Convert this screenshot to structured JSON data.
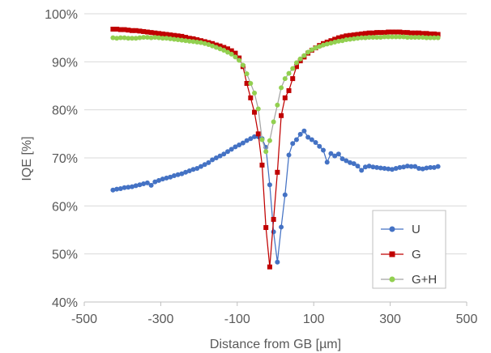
{
  "chart_data": {
    "type": "line",
    "xlabel": "Distance from GB [µm]",
    "ylabel": "IQE [%]",
    "xlim": [
      -500,
      500
    ],
    "ylim": [
      40,
      100
    ],
    "x_ticks": [
      -500,
      -300,
      -100,
      100,
      300,
      500
    ],
    "x_tick_labels": [
      "-500",
      "-300",
      "-100",
      "100",
      "300",
      "500"
    ],
    "y_ticks": [
      40,
      50,
      60,
      70,
      80,
      90,
      100
    ],
    "y_tick_labels": [
      "40%",
      "50%",
      "60%",
      "70%",
      "80%",
      "90%",
      "100%"
    ],
    "grid": "horizontal",
    "legend_position": "bottom-right",
    "series": [
      {
        "name": "U",
        "color": "#4472c4",
        "marker": "circle",
        "x": [
          -425,
          -415,
          -405,
          -395,
          -385,
          -375,
          -365,
          -355,
          -345,
          -335,
          -325,
          -315,
          -305,
          -295,
          -285,
          -275,
          -265,
          -255,
          -245,
          -235,
          -225,
          -215,
          -205,
          -195,
          -185,
          -175,
          -165,
          -155,
          -145,
          -135,
          -125,
          -115,
          -105,
          -95,
          -85,
          -75,
          -65,
          -55,
          -45,
          -35,
          -25,
          -15,
          -5,
          5,
          15,
          25,
          35,
          45,
          55,
          65,
          75,
          85,
          95,
          105,
          115,
          125,
          135,
          145,
          155,
          165,
          175,
          185,
          195,
          205,
          215,
          225,
          235,
          245,
          255,
          265,
          275,
          285,
          295,
          305,
          315,
          325,
          335,
          345,
          355,
          365,
          375,
          385,
          395,
          405,
          415,
          425
        ],
        "values": [
          63.3,
          63.5,
          63.6,
          63.8,
          63.9,
          64.0,
          64.2,
          64.4,
          64.6,
          64.8,
          64.3,
          65.0,
          65.3,
          65.6,
          65.8,
          66.0,
          66.3,
          66.5,
          66.7,
          67.0,
          67.3,
          67.6,
          67.8,
          68.2,
          68.6,
          69.0,
          69.6,
          70.0,
          70.4,
          70.8,
          71.3,
          71.8,
          72.3,
          72.7,
          73.1,
          73.6,
          74.0,
          74.4,
          74.4,
          74.0,
          72.2,
          64.4,
          54.6,
          48.3,
          55.6,
          62.3,
          70.6,
          73.0,
          73.8,
          74.9,
          75.6,
          74.3,
          73.8,
          73.2,
          72.4,
          71.6,
          69.1,
          70.9,
          70.4,
          70.8,
          69.8,
          69.4,
          69.0,
          68.8,
          68.3,
          67.4,
          68.1,
          68.3,
          68.1,
          68.0,
          67.9,
          67.8,
          67.7,
          67.6,
          67.8,
          68.0,
          68.1,
          68.3,
          68.2,
          68.2,
          67.8,
          67.7,
          67.9,
          68.0,
          68.0,
          68.2
        ]
      },
      {
        "name": "G",
        "color": "#c00000",
        "marker": "square",
        "x": [
          -425,
          -415,
          -405,
          -395,
          -385,
          -375,
          -365,
          -355,
          -345,
          -335,
          -325,
          -315,
          -305,
          -295,
          -285,
          -275,
          -265,
          -255,
          -245,
          -235,
          -225,
          -215,
          -205,
          -195,
          -185,
          -175,
          -165,
          -155,
          -145,
          -135,
          -125,
          -115,
          -105,
          -95,
          -85,
          -75,
          -65,
          -55,
          -45,
          -35,
          -25,
          -15,
          -5,
          5,
          15,
          25,
          35,
          45,
          55,
          65,
          75,
          85,
          95,
          105,
          115,
          125,
          135,
          145,
          155,
          165,
          175,
          185,
          195,
          205,
          215,
          225,
          235,
          245,
          255,
          265,
          275,
          285,
          295,
          305,
          315,
          325,
          335,
          345,
          355,
          365,
          375,
          385,
          395,
          405,
          415,
          425
        ],
        "values": [
          96.8,
          96.8,
          96.7,
          96.7,
          96.6,
          96.5,
          96.5,
          96.4,
          96.3,
          96.2,
          96.1,
          96.0,
          95.9,
          95.8,
          95.7,
          95.6,
          95.5,
          95.4,
          95.3,
          95.1,
          94.9,
          94.8,
          94.6,
          94.4,
          94.2,
          94.0,
          93.8,
          93.5,
          93.3,
          93.0,
          92.7,
          92.3,
          91.8,
          90.8,
          89.0,
          85.5,
          82.5,
          79.5,
          75.0,
          68.5,
          55.5,
          47.3,
          57.2,
          67.0,
          78.8,
          82.5,
          84.0,
          86.5,
          89.0,
          90.2,
          91.0,
          91.8,
          92.4,
          92.9,
          93.4,
          93.8,
          94.1,
          94.4,
          94.7,
          95.0,
          95.2,
          95.4,
          95.5,
          95.6,
          95.7,
          95.8,
          95.9,
          96.0,
          96.0,
          96.1,
          96.1,
          96.1,
          96.2,
          96.2,
          96.2,
          96.2,
          96.1,
          96.1,
          96.0,
          96.0,
          96.0,
          95.9,
          95.9,
          95.8,
          95.8,
          95.7
        ]
      },
      {
        "name": "G+H",
        "color": "#92d050",
        "marker": "circle",
        "x": [
          -425,
          -415,
          -405,
          -395,
          -385,
          -375,
          -365,
          -355,
          -345,
          -335,
          -325,
          -315,
          -305,
          -295,
          -285,
          -275,
          -265,
          -255,
          -245,
          -235,
          -225,
          -215,
          -205,
          -195,
          -185,
          -175,
          -165,
          -155,
          -145,
          -135,
          -125,
          -115,
          -105,
          -95,
          -85,
          -75,
          -65,
          -55,
          -45,
          -35,
          -25,
          -15,
          -5,
          5,
          15,
          25,
          35,
          45,
          55,
          65,
          75,
          85,
          95,
          105,
          115,
          125,
          135,
          145,
          155,
          165,
          175,
          185,
          195,
          205,
          215,
          225,
          235,
          245,
          255,
          265,
          275,
          285,
          295,
          305,
          315,
          325,
          335,
          345,
          355,
          365,
          375,
          385,
          395,
          405,
          415,
          425
        ],
        "values": [
          95.0,
          94.9,
          95.0,
          95.0,
          94.9,
          94.9,
          94.9,
          95.0,
          95.1,
          95.1,
          95.0,
          95.1,
          95.0,
          94.9,
          94.9,
          94.8,
          94.7,
          94.6,
          94.5,
          94.4,
          94.3,
          94.2,
          94.1,
          94.0,
          93.8,
          93.6,
          93.3,
          93.0,
          92.7,
          92.4,
          92.0,
          91.6,
          91.0,
          90.3,
          89.3,
          87.5,
          85.5,
          83.5,
          80.2,
          73.8,
          71.3,
          73.6,
          77.5,
          81.0,
          84.6,
          86.5,
          87.6,
          88.6,
          89.8,
          90.6,
          91.3,
          92.0,
          92.5,
          92.9,
          93.2,
          93.5,
          93.7,
          93.9,
          94.1,
          94.3,
          94.4,
          94.6,
          94.7,
          94.8,
          94.9,
          95.0,
          95.0,
          95.1,
          95.1,
          95.1,
          95.1,
          95.2,
          95.2,
          95.2,
          95.2,
          95.2,
          95.2,
          95.1,
          95.1,
          95.1,
          95.1,
          95.1,
          95.0,
          95.0,
          95.0,
          95.0
        ]
      }
    ]
  }
}
